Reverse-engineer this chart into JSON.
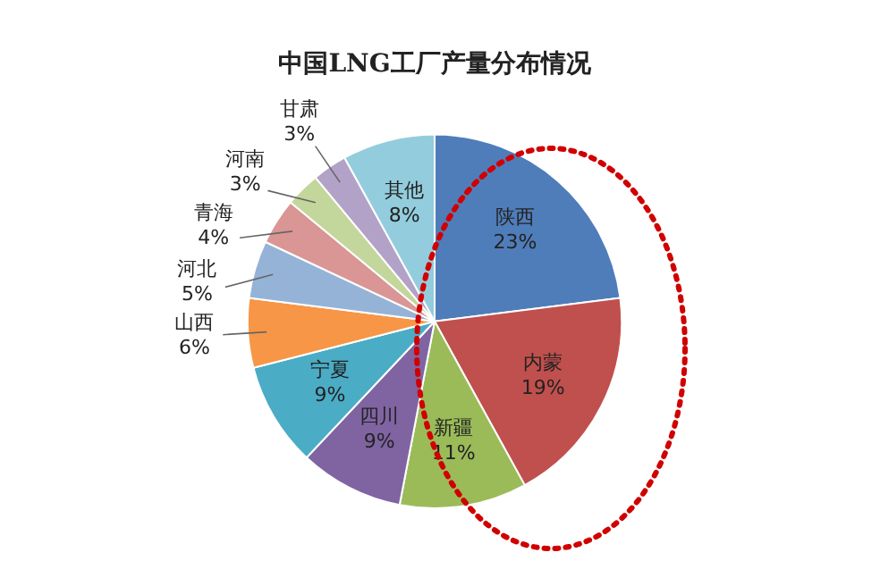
{
  "chart_data": {
    "type": "pie",
    "title": "中国LNG工厂产量分布情况",
    "categories": [
      "陕西",
      "内蒙",
      "新疆",
      "四川",
      "宁夏",
      "山西",
      "河北",
      "青海",
      "河南",
      "甘肃",
      "其他"
    ],
    "values": [
      23,
      19,
      11,
      9,
      9,
      6,
      5,
      4,
      3,
      3,
      8
    ],
    "value_labels": [
      "23%",
      "19%",
      "11%",
      "9%",
      "9%",
      "6%",
      "5%",
      "4%",
      "3%",
      "3%",
      "8%"
    ],
    "colors": [
      "#4f7dba",
      "#c0504d",
      "#9bbb59",
      "#8064a2",
      "#4bacc6",
      "#f79646",
      "#95b3d7",
      "#d99694",
      "#c3d69b",
      "#b3a2c7",
      "#93cddd"
    ]
  }
}
